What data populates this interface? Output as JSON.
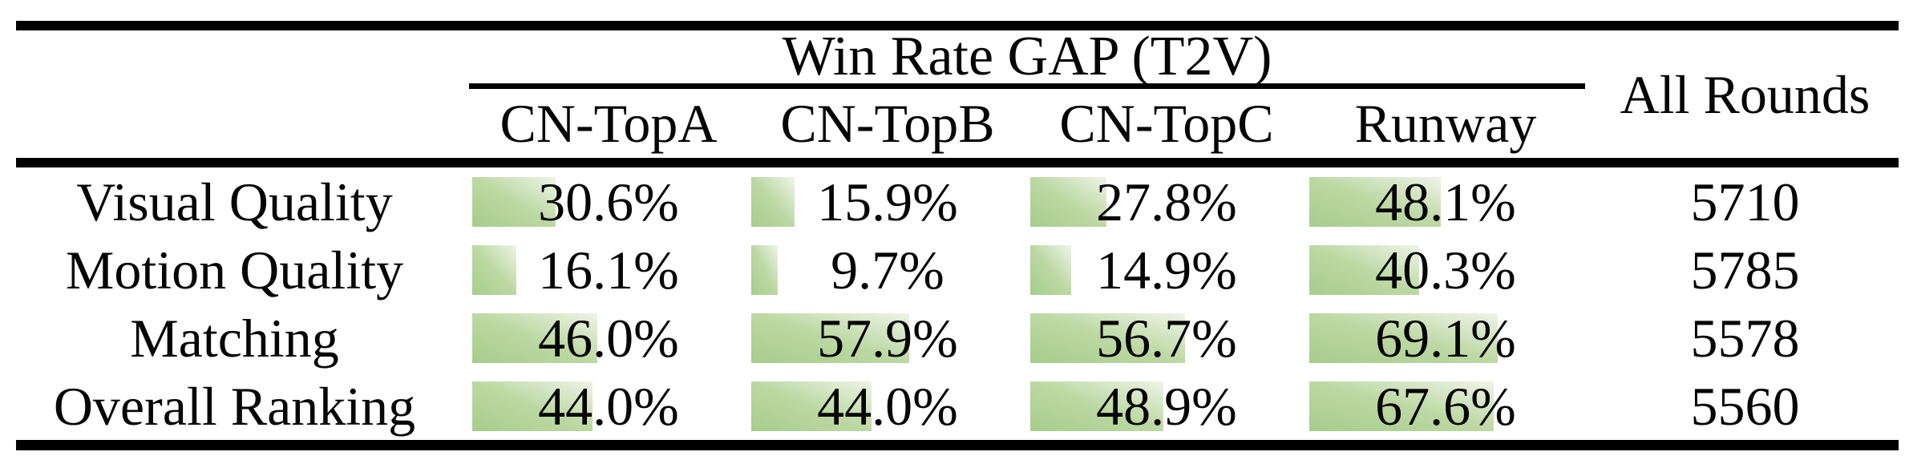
{
  "table": {
    "title": "Win Rate GAP (T2V)",
    "all_rounds_header": "All Rounds",
    "model_columns": [
      "CN-TopA",
      "CN-TopB",
      "CN-TopC",
      "Runway"
    ],
    "rows": [
      {
        "label": "Visual Quality",
        "values": [
          "30.6%",
          "15.9%",
          "27.8%",
          "48.1%"
        ],
        "pcts": [
          30.6,
          15.9,
          27.8,
          48.1
        ],
        "all_rounds": "5710"
      },
      {
        "label": "Motion Quality",
        "values": [
          "16.1%",
          "9.7%",
          "14.9%",
          "40.3%"
        ],
        "pcts": [
          16.1,
          9.7,
          14.9,
          40.3
        ],
        "all_rounds": "5785"
      },
      {
        "label": "Matching",
        "values": [
          "46.0%",
          "57.9%",
          "56.7%",
          "69.1%"
        ],
        "pcts": [
          46.0,
          57.9,
          56.7,
          69.1
        ],
        "all_rounds": "5578"
      },
      {
        "label": "Overall Ranking",
        "values": [
          "44.0%",
          "44.0%",
          "48.9%",
          "67.6%"
        ],
        "pcts": [
          44.0,
          44.0,
          48.9,
          67.6
        ],
        "all_rounds": "5560"
      }
    ],
    "colors": {
      "bar_green": "#a6cd8c",
      "bar_mid": "#bcd8a3",
      "bar_fade": "#eff4e8",
      "rule": "#000000",
      "text": "#060606"
    }
  },
  "chart_data": {
    "type": "table",
    "title": "Win Rate GAP (T2V)",
    "columns": [
      "",
      "CN-TopA",
      "CN-TopB",
      "CN-TopC",
      "Runway",
      "All Rounds"
    ],
    "rows": [
      [
        "Visual Quality",
        "30.6%",
        "15.9%",
        "27.8%",
        "48.1%",
        "5710"
      ],
      [
        "Motion Quality",
        "16.1%",
        "9.7%",
        "14.9%",
        "40.3%",
        "5785"
      ],
      [
        "Matching",
        "46.0%",
        "57.9%",
        "56.7%",
        "69.1%",
        "5578"
      ],
      [
        "Overall Ranking",
        "44.0%",
        "44.0%",
        "48.9%",
        "67.6%",
        "5560"
      ]
    ],
    "series": [
      {
        "name": "CN-TopA",
        "values": [
          30.6,
          16.1,
          46.0,
          44.0
        ]
      },
      {
        "name": "CN-TopB",
        "values": [
          15.9,
          9.7,
          57.9,
          44.0
        ]
      },
      {
        "name": "CN-TopC",
        "values": [
          27.8,
          14.9,
          56.7,
          48.9
        ]
      },
      {
        "name": "Runway",
        "values": [
          48.1,
          40.3,
          69.1,
          67.6
        ]
      }
    ],
    "categories": [
      "Visual Quality",
      "Motion Quality",
      "Matching",
      "Overall Ranking"
    ],
    "all_rounds": [
      5710,
      5785,
      5578,
      5560
    ],
    "bar_style": "left-anchored green gradient data bars inside cells, width proportional to percentage (100% = full cell width)",
    "value_range": [
      0,
      100
    ]
  }
}
